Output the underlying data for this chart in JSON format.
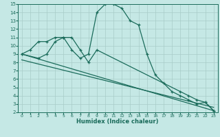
{
  "title": "",
  "xlabel": "Humidex (Indice chaleur)",
  "bg_color": "#c5e8e5",
  "grid_color": "#a8ccc8",
  "line_color": "#1a6b5a",
  "spine_color": "#1a6b5a",
  "xlim": [
    -0.5,
    23.5
  ],
  "ylim": [
    2,
    15
  ],
  "xticks": [
    0,
    1,
    2,
    3,
    4,
    5,
    6,
    7,
    8,
    9,
    10,
    11,
    12,
    13,
    14,
    15,
    16,
    17,
    18,
    19,
    20,
    21,
    22,
    23
  ],
  "yticks": [
    2,
    3,
    4,
    5,
    6,
    7,
    8,
    9,
    10,
    11,
    12,
    13,
    14,
    15
  ],
  "series1_x": [
    0,
    1,
    2,
    3,
    4,
    5,
    6,
    7,
    8,
    9,
    10,
    11,
    12,
    13,
    14,
    15,
    16,
    17,
    18,
    19,
    20,
    21,
    22,
    23
  ],
  "series1_y": [
    9,
    9.5,
    10.5,
    10.5,
    11,
    11,
    9.5,
    8.5,
    9.0,
    14.0,
    15.0,
    15.0,
    14.5,
    13.0,
    12.5,
    9.0,
    6.5,
    5.5,
    4.5,
    4.0,
    3.5,
    3.0,
    3.2,
    2.2
  ],
  "series2_x": [
    0,
    2,
    3,
    4,
    5,
    6,
    7,
    8,
    9,
    19,
    20,
    21,
    22,
    23
  ],
  "series2_y": [
    9,
    8.5,
    9.0,
    10.5,
    11.0,
    11.0,
    9.5,
    8.0,
    9.5,
    4.5,
    4.0,
    3.5,
    3.2,
    2.2
  ],
  "series3_x": [
    0,
    23
  ],
  "series3_y": [
    9.0,
    2.2
  ],
  "series4_x": [
    0,
    23
  ],
  "series4_y": [
    8.3,
    2.6
  ]
}
